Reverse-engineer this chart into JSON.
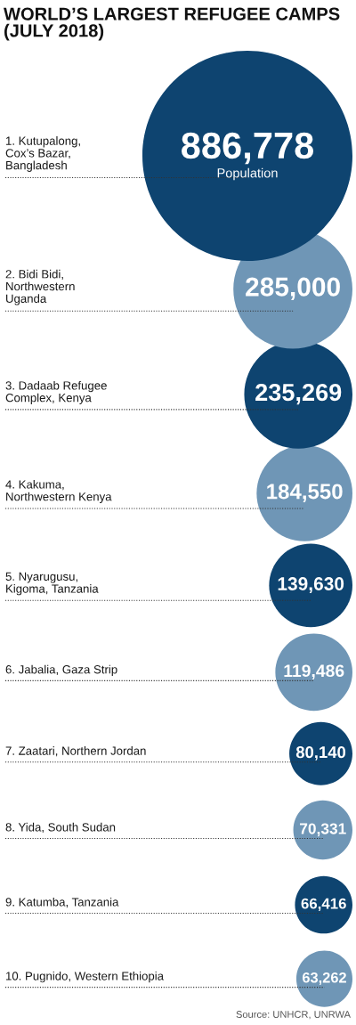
{
  "chart_data": {
    "type": "other",
    "title": "WORLD’S LARGEST REFUGEE CAMPS\n(JULY 2018)",
    "categories": [
      "1. Kutupalong,\nCox’s Bazar,\nBangladesh",
      "2. Bidi Bidi,\nNorthwestern\nUganda",
      "3. Dadaab Refugee\nComplex, Kenya",
      "4. Kakuma,\nNorthwestern Kenya",
      "5. Nyarugusu,\nKigoma, Tanzania",
      "6. Jabalia, Gaza Strip",
      "7. Zaatari, Northern Jordan",
      "8. Yida, South Sudan",
      "9. Katumba, Tanzania",
      "10. Pugnido, Western Ethiopia"
    ],
    "values": [
      886778,
      285000,
      235269,
      184550,
      139630,
      119486,
      80140,
      70331,
      66416,
      63262
    ],
    "value_labels": [
      "886,778",
      "285,000",
      "235,269",
      "184,550",
      "139,630",
      "119,486",
      "80,140",
      "70,331",
      "66,416",
      "63,262"
    ],
    "colors": [
      "#0e4470",
      "#6f96b6",
      "#0e4470",
      "#6f96b6",
      "#0e4470",
      "#6f96b6",
      "#0e4470",
      "#6f96b6",
      "#0e4470",
      "#6f96b6"
    ],
    "annotations": [
      "Population",
      "Source: UNHCR, UNRWA"
    ]
  }
}
